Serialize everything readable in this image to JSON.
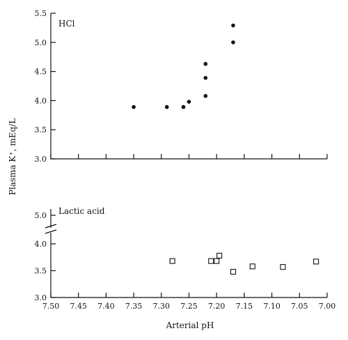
{
  "ylabel": "Plasma K⁺, mEq/L",
  "xlabel": "Arterial pH",
  "chart_data": [
    {
      "type": "scatter",
      "panel_label": "HCl",
      "xlabel": "Arterial pH",
      "ylabel": "Plasma K⁺, mEq/L",
      "xlim": [
        7.5,
        7.0
      ],
      "ylim": [
        3.0,
        5.5
      ],
      "x_ticks": [
        7.5,
        7.45,
        7.4,
        7.35,
        7.3,
        7.25,
        7.2,
        7.15,
        7.1,
        7.05,
        7.0
      ],
      "y_ticks": [
        3.0,
        3.5,
        4.0,
        4.5,
        5.0,
        5.5
      ],
      "y_tick_labels": [
        "3.0",
        "3.5",
        "4.0",
        "4.5",
        "5.0",
        "5.5"
      ],
      "marker": "filled-circle",
      "x": [
        7.35,
        7.29,
        7.26,
        7.25,
        7.22,
        7.22,
        7.22,
        7.17,
        7.17
      ],
      "y": [
        3.89,
        3.89,
        3.89,
        3.98,
        4.08,
        4.39,
        4.63,
        5.0,
        5.29
      ]
    },
    {
      "type": "scatter",
      "panel_label": "Lactic acid",
      "xlabel": "Arterial pH",
      "ylabel": "Plasma K⁺, mEq/L",
      "xlim": [
        7.5,
        7.0
      ],
      "ylim": [
        3.0,
        4.0
      ],
      "axis_break": true,
      "x_ticks": [
        7.5,
        7.45,
        7.4,
        7.35,
        7.3,
        7.25,
        7.2,
        7.15,
        7.1,
        7.05,
        7.0
      ],
      "x_tick_labels": [
        "7.50",
        "7.45",
        "7.40",
        "7.35",
        "7.30",
        "7.25",
        "7.20",
        "7.15",
        "7.10",
        "7.05",
        "7.00"
      ],
      "y_tick_labels": [
        "3.0",
        "3.5",
        "4.0",
        "5.0"
      ],
      "marker": "open-square",
      "x": [
        7.28,
        7.21,
        7.2,
        7.195,
        7.17,
        7.135,
        7.08,
        7.02
      ],
      "y": [
        3.68,
        3.68,
        3.68,
        3.78,
        3.48,
        3.58,
        3.57,
        3.67
      ]
    }
  ]
}
